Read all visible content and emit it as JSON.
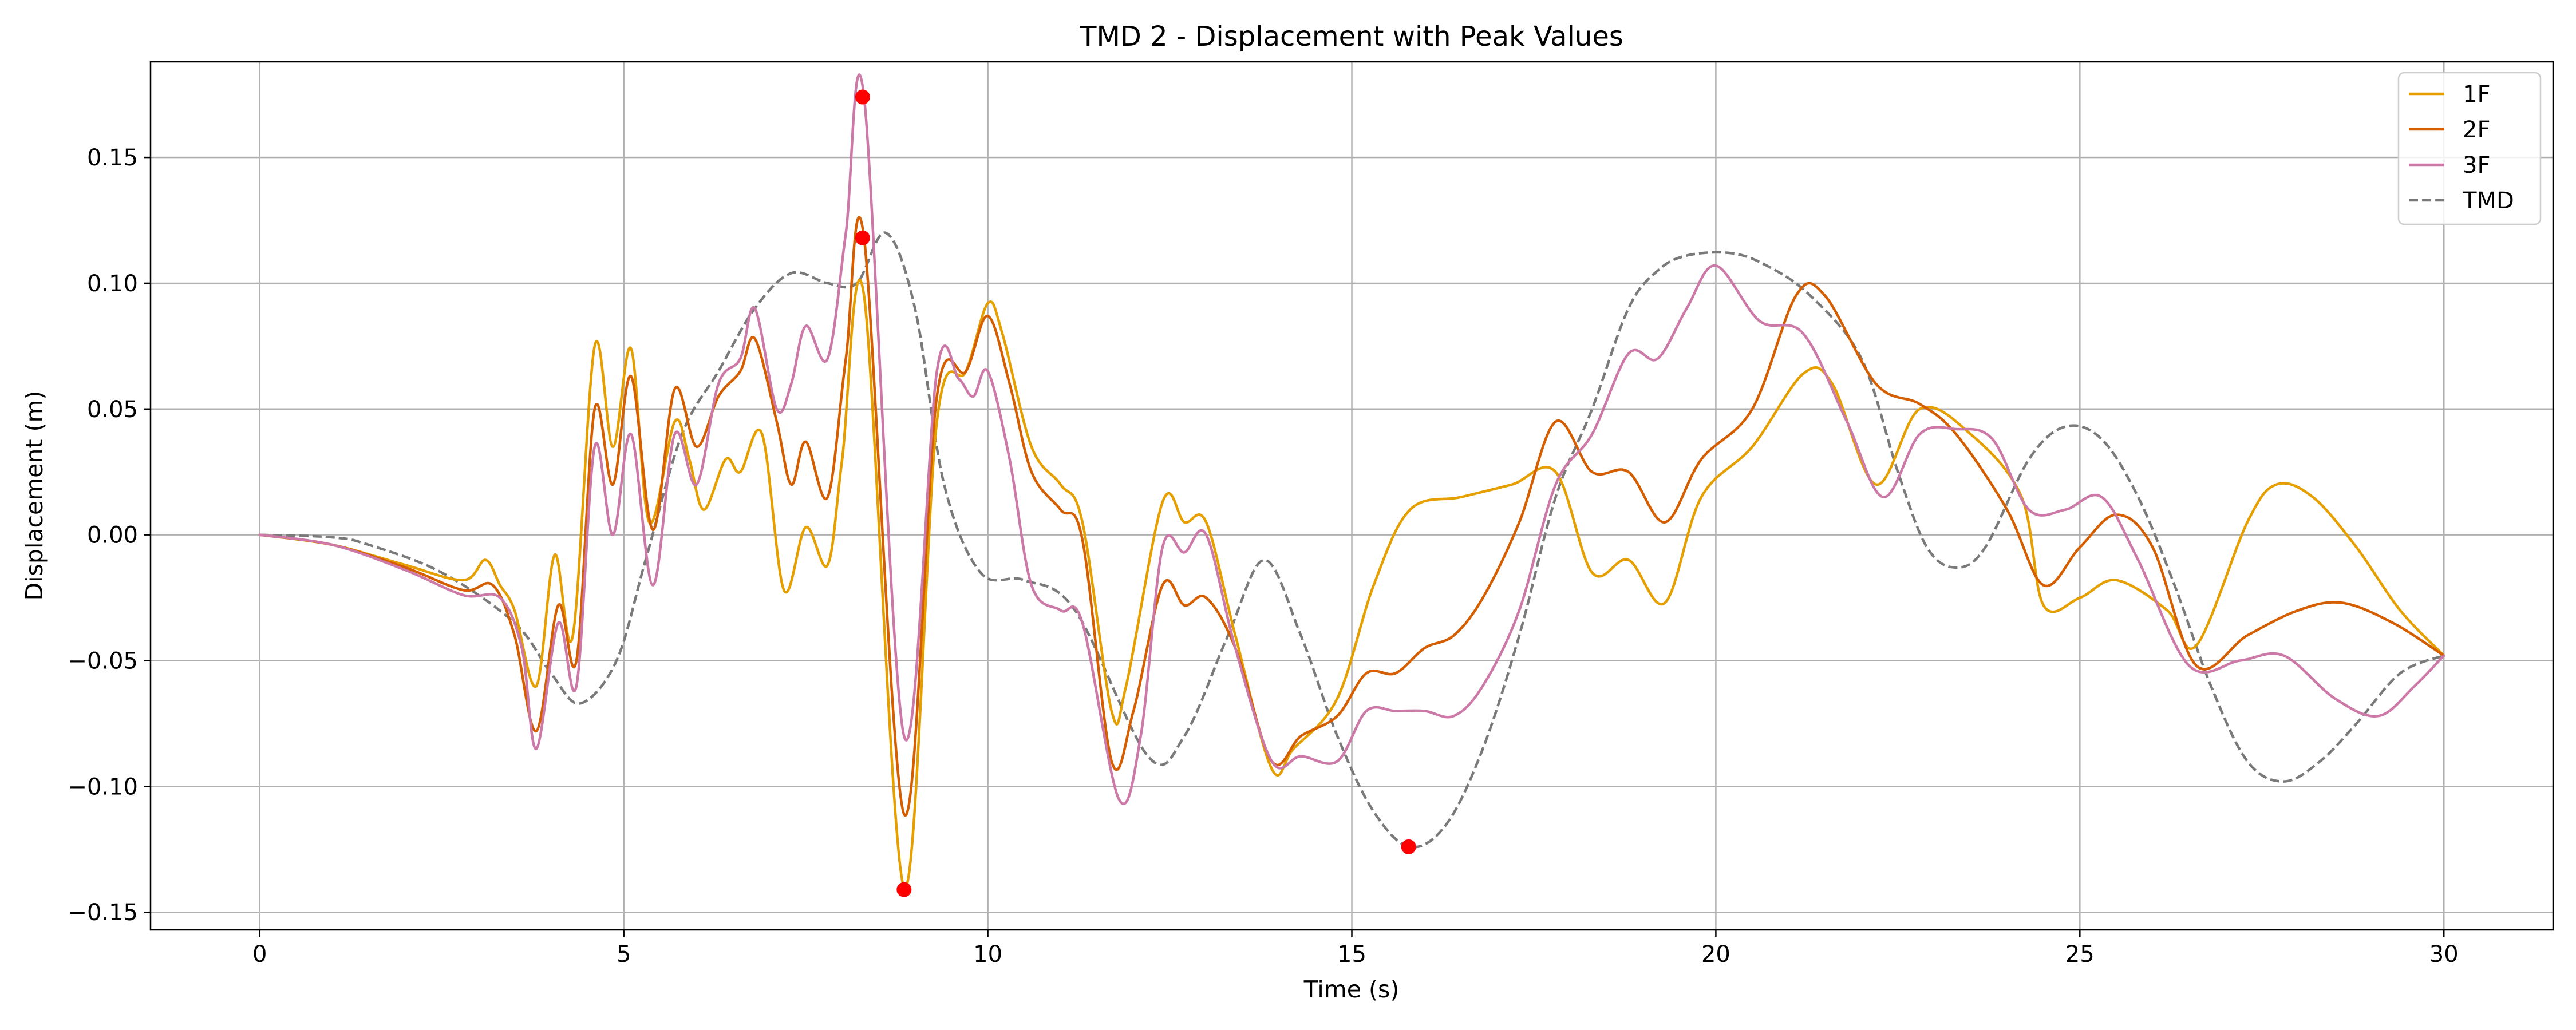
{
  "chart_data": {
    "type": "line",
    "title": "TMD 2 - Displacement with Peak Values",
    "xlabel": "Time (s)",
    "ylabel": "Displacement (m)",
    "xlim": [
      -1.5,
      31.5
    ],
    "ylim": [
      -0.157,
      0.188
    ],
    "grid": true,
    "legend_position": "top-right",
    "x_ticks": [
      0,
      5,
      10,
      15,
      20,
      25,
      30
    ],
    "x_tick_labels": [
      "0",
      "5",
      "10",
      "15",
      "20",
      "25",
      "30"
    ],
    "y_ticks": [
      -0.15,
      -0.1,
      -0.05,
      0.0,
      0.05,
      0.1,
      0.15
    ],
    "y_tick_labels": [
      "−0.15",
      "−0.10",
      "−0.05",
      "0.00",
      "0.05",
      "0.10",
      "0.15"
    ],
    "series": [
      {
        "name": "1F",
        "color": "#e69f00",
        "dash": "solid",
        "points": [
          [
            0,
            0
          ],
          [
            1,
            -0.004
          ],
          [
            2,
            -0.012
          ],
          [
            2.8,
            -0.018
          ],
          [
            3.1,
            -0.01
          ],
          [
            3.3,
            -0.02
          ],
          [
            3.5,
            -0.03
          ],
          [
            3.8,
            -0.06
          ],
          [
            4.05,
            -0.008
          ],
          [
            4.3,
            -0.04
          ],
          [
            4.6,
            0.075
          ],
          [
            4.85,
            0.035
          ],
          [
            5.1,
            0.074
          ],
          [
            5.35,
            0.005
          ],
          [
            5.7,
            0.045
          ],
          [
            5.9,
            0.03
          ],
          [
            6.1,
            0.01
          ],
          [
            6.4,
            0.03
          ],
          [
            6.6,
            0.025
          ],
          [
            6.9,
            0.04
          ],
          [
            7.2,
            -0.022
          ],
          [
            7.5,
            0.003
          ],
          [
            7.8,
            -0.012
          ],
          [
            8.0,
            0.03
          ],
          [
            8.3,
            0.095
          ],
          [
            8.85,
            -0.14
          ],
          [
            9.3,
            0.045
          ],
          [
            9.7,
            0.065
          ],
          [
            10.0,
            0.092
          ],
          [
            10.2,
            0.08
          ],
          [
            10.6,
            0.035
          ],
          [
            11.0,
            0.02
          ],
          [
            11.3,
            0.005
          ],
          [
            11.7,
            -0.07
          ],
          [
            11.9,
            -0.06
          ],
          [
            12.4,
            0.013
          ],
          [
            12.7,
            0.005
          ],
          [
            13.0,
            0.005
          ],
          [
            13.4,
            -0.04
          ],
          [
            13.9,
            -0.093
          ],
          [
            14.2,
            -0.085
          ],
          [
            14.8,
            -0.065
          ],
          [
            15.3,
            -0.02
          ],
          [
            15.8,
            0.01
          ],
          [
            16.5,
            0.015
          ],
          [
            17.2,
            0.02
          ],
          [
            17.8,
            0.025
          ],
          [
            18.3,
            -0.015
          ],
          [
            18.8,
            -0.01
          ],
          [
            19.3,
            -0.027
          ],
          [
            19.8,
            0.015
          ],
          [
            20.5,
            0.035
          ],
          [
            21.2,
            0.064
          ],
          [
            21.6,
            0.06
          ],
          [
            22.2,
            0.02
          ],
          [
            22.8,
            0.05
          ],
          [
            23.5,
            0.04
          ],
          [
            24.2,
            0.015
          ],
          [
            24.5,
            -0.028
          ],
          [
            25.0,
            -0.025
          ],
          [
            25.5,
            -0.018
          ],
          [
            26.2,
            -0.03
          ],
          [
            26.6,
            -0.044
          ],
          [
            27.3,
            0.005
          ],
          [
            27.7,
            0.02
          ],
          [
            28.2,
            0.015
          ],
          [
            28.8,
            -0.005
          ],
          [
            29.4,
            -0.03
          ],
          [
            30,
            -0.048
          ]
        ]
      },
      {
        "name": "2F",
        "color": "#d55e00",
        "dash": "solid",
        "points": [
          [
            0,
            0
          ],
          [
            1,
            -0.004
          ],
          [
            2,
            -0.013
          ],
          [
            2.8,
            -0.022
          ],
          [
            3.2,
            -0.02
          ],
          [
            3.5,
            -0.04
          ],
          [
            3.8,
            -0.078
          ],
          [
            4.1,
            -0.028
          ],
          [
            4.35,
            -0.05
          ],
          [
            4.6,
            0.05
          ],
          [
            4.85,
            0.02
          ],
          [
            5.1,
            0.063
          ],
          [
            5.4,
            0.002
          ],
          [
            5.7,
            0.058
          ],
          [
            6.0,
            0.035
          ],
          [
            6.3,
            0.055
          ],
          [
            6.6,
            0.065
          ],
          [
            6.8,
            0.078
          ],
          [
            7.1,
            0.045
          ],
          [
            7.3,
            0.02
          ],
          [
            7.5,
            0.037
          ],
          [
            7.8,
            0.015
          ],
          [
            8.05,
            0.07
          ],
          [
            8.3,
            0.118
          ],
          [
            8.85,
            -0.111
          ],
          [
            9.3,
            0.055
          ],
          [
            9.7,
            0.065
          ],
          [
            10.0,
            0.087
          ],
          [
            10.3,
            0.06
          ],
          [
            10.6,
            0.025
          ],
          [
            11.0,
            0.01
          ],
          [
            11.3,
            -0.002
          ],
          [
            11.7,
            -0.09
          ],
          [
            12.0,
            -0.07
          ],
          [
            12.4,
            -0.02
          ],
          [
            12.7,
            -0.028
          ],
          [
            13.0,
            -0.025
          ],
          [
            13.4,
            -0.045
          ],
          [
            13.9,
            -0.09
          ],
          [
            14.3,
            -0.08
          ],
          [
            14.8,
            -0.072
          ],
          [
            15.2,
            -0.055
          ],
          [
            15.6,
            -0.055
          ],
          [
            16.0,
            -0.045
          ],
          [
            16.4,
            -0.04
          ],
          [
            16.8,
            -0.025
          ],
          [
            17.3,
            0.005
          ],
          [
            17.8,
            0.045
          ],
          [
            18.3,
            0.025
          ],
          [
            18.8,
            0.025
          ],
          [
            19.3,
            0.005
          ],
          [
            19.8,
            0.03
          ],
          [
            20.5,
            0.05
          ],
          [
            21.1,
            0.095
          ],
          [
            21.5,
            0.095
          ],
          [
            22.2,
            0.06
          ],
          [
            22.8,
            0.052
          ],
          [
            23.3,
            0.04
          ],
          [
            24.0,
            0.01
          ],
          [
            24.5,
            -0.02
          ],
          [
            25.0,
            -0.005
          ],
          [
            25.5,
            0.008
          ],
          [
            26.0,
            -0.005
          ],
          [
            26.6,
            -0.052
          ],
          [
            27.3,
            -0.04
          ],
          [
            28.0,
            -0.03
          ],
          [
            28.6,
            -0.027
          ],
          [
            29.3,
            -0.035
          ],
          [
            30,
            -0.048
          ]
        ]
      },
      {
        "name": "3F",
        "color": "#cc79a7",
        "dash": "solid",
        "points": [
          [
            0,
            0
          ],
          [
            1,
            -0.004
          ],
          [
            2,
            -0.014
          ],
          [
            2.8,
            -0.024
          ],
          [
            3.3,
            -0.025
          ],
          [
            3.6,
            -0.045
          ],
          [
            3.8,
            -0.085
          ],
          [
            4.1,
            -0.035
          ],
          [
            4.35,
            -0.06
          ],
          [
            4.6,
            0.035
          ],
          [
            4.85,
            0.0
          ],
          [
            5.1,
            0.04
          ],
          [
            5.4,
            -0.02
          ],
          [
            5.7,
            0.04
          ],
          [
            6.0,
            0.02
          ],
          [
            6.3,
            0.06
          ],
          [
            6.6,
            0.07
          ],
          [
            6.8,
            0.09
          ],
          [
            7.1,
            0.05
          ],
          [
            7.3,
            0.06
          ],
          [
            7.5,
            0.083
          ],
          [
            7.8,
            0.07
          ],
          [
            8.05,
            0.12
          ],
          [
            8.3,
            0.174
          ],
          [
            8.85,
            -0.08
          ],
          [
            9.3,
            0.065
          ],
          [
            9.6,
            0.062
          ],
          [
            9.8,
            0.055
          ],
          [
            10.0,
            0.065
          ],
          [
            10.3,
            0.03
          ],
          [
            10.6,
            -0.02
          ],
          [
            11.0,
            -0.03
          ],
          [
            11.3,
            -0.035
          ],
          [
            11.8,
            -0.105
          ],
          [
            12.1,
            -0.08
          ],
          [
            12.4,
            -0.005
          ],
          [
            12.7,
            -0.007
          ],
          [
            13.0,
            0.0
          ],
          [
            13.4,
            -0.045
          ],
          [
            13.9,
            -0.09
          ],
          [
            14.3,
            -0.088
          ],
          [
            14.8,
            -0.09
          ],
          [
            15.2,
            -0.07
          ],
          [
            15.6,
            -0.07
          ],
          [
            16.0,
            -0.07
          ],
          [
            16.4,
            -0.072
          ],
          [
            16.8,
            -0.06
          ],
          [
            17.3,
            -0.03
          ],
          [
            17.8,
            0.02
          ],
          [
            18.3,
            0.04
          ],
          [
            18.8,
            0.072
          ],
          [
            19.2,
            0.07
          ],
          [
            19.6,
            0.09
          ],
          [
            20.0,
            0.107
          ],
          [
            20.6,
            0.085
          ],
          [
            21.2,
            0.08
          ],
          [
            21.8,
            0.045
          ],
          [
            22.3,
            0.015
          ],
          [
            22.8,
            0.04
          ],
          [
            23.3,
            0.042
          ],
          [
            23.8,
            0.038
          ],
          [
            24.3,
            0.01
          ],
          [
            24.8,
            0.01
          ],
          [
            25.3,
            0.015
          ],
          [
            25.8,
            -0.01
          ],
          [
            26.5,
            -0.052
          ],
          [
            27.2,
            -0.05
          ],
          [
            27.8,
            -0.048
          ],
          [
            28.5,
            -0.065
          ],
          [
            29.1,
            -0.072
          ],
          [
            29.6,
            -0.06
          ],
          [
            30,
            -0.048
          ]
        ]
      },
      {
        "name": "TMD",
        "color": "#7a7a7a",
        "dash": "dashed",
        "points": [
          [
            0,
            0
          ],
          [
            1,
            -0.001
          ],
          [
            1.5,
            -0.004
          ],
          [
            2.5,
            -0.015
          ],
          [
            3.5,
            -0.035
          ],
          [
            4.0,
            -0.055
          ],
          [
            4.4,
            -0.067
          ],
          [
            4.9,
            -0.05
          ],
          [
            5.3,
            -0.01
          ],
          [
            5.8,
            0.04
          ],
          [
            6.3,
            0.065
          ],
          [
            6.8,
            0.09
          ],
          [
            7.3,
            0.104
          ],
          [
            7.8,
            0.1
          ],
          [
            8.2,
            0.1
          ],
          [
            8.6,
            0.12
          ],
          [
            9.0,
            0.09
          ],
          [
            9.4,
            0.02
          ],
          [
            9.9,
            -0.015
          ],
          [
            10.5,
            -0.018
          ],
          [
            11.2,
            -0.03
          ],
          [
            12.2,
            -0.088
          ],
          [
            12.7,
            -0.08
          ],
          [
            13.3,
            -0.04
          ],
          [
            13.8,
            -0.01
          ],
          [
            14.3,
            -0.04
          ],
          [
            14.8,
            -0.08
          ],
          [
            15.3,
            -0.11
          ],
          [
            15.8,
            -0.124
          ],
          [
            16.3,
            -0.115
          ],
          [
            16.8,
            -0.085
          ],
          [
            17.3,
            -0.04
          ],
          [
            17.8,
            0.015
          ],
          [
            18.3,
            0.05
          ],
          [
            18.8,
            0.09
          ],
          [
            19.2,
            0.105
          ],
          [
            19.6,
            0.111
          ],
          [
            20.2,
            0.112
          ],
          [
            20.7,
            0.107
          ],
          [
            21.3,
            0.095
          ],
          [
            22.0,
            0.07
          ],
          [
            22.5,
            0.025
          ],
          [
            22.9,
            -0.005
          ],
          [
            23.3,
            -0.013
          ],
          [
            23.7,
            -0.005
          ],
          [
            24.3,
            0.03
          ],
          [
            24.8,
            0.043
          ],
          [
            25.3,
            0.038
          ],
          [
            25.8,
            0.015
          ],
          [
            26.3,
            -0.02
          ],
          [
            26.8,
            -0.06
          ],
          [
            27.3,
            -0.09
          ],
          [
            27.8,
            -0.098
          ],
          [
            28.3,
            -0.09
          ],
          [
            28.8,
            -0.075
          ],
          [
            29.4,
            -0.055
          ],
          [
            30,
            -0.048
          ]
        ]
      }
    ],
    "peak_markers": {
      "color": "#ff0000",
      "points": [
        [
          8.28,
          0.174
        ],
        [
          8.28,
          0.118
        ],
        [
          8.85,
          -0.141
        ],
        [
          15.78,
          -0.124
        ]
      ]
    }
  }
}
